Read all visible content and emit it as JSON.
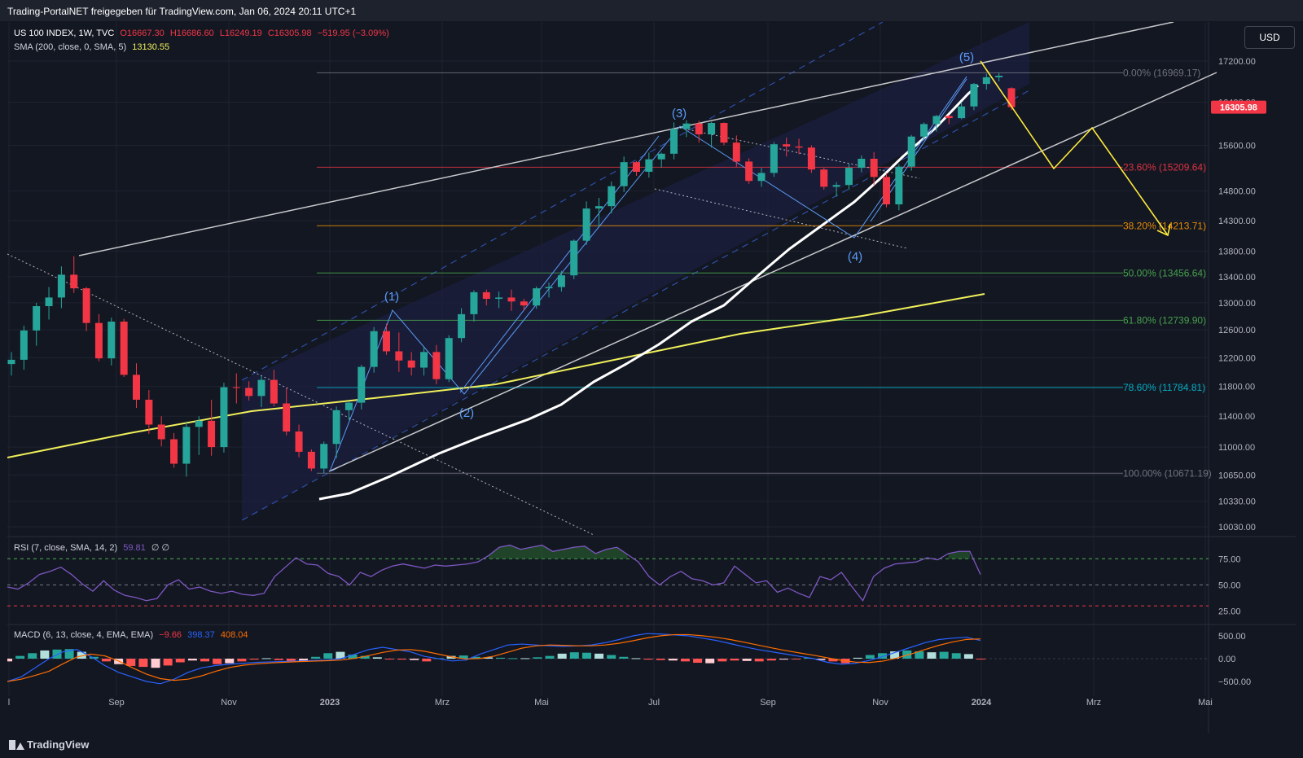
{
  "header": {
    "title": "Trading-PortalNET freigegeben für TradingView.com, Jan 06, 2024 20:11 UTC+1"
  },
  "legend": {
    "symbol": "US 100 INDEX, 1W, TVC",
    "open": "O16667.30",
    "high": "H16686.60",
    "low": "L16249.19",
    "close": "C16305.98",
    "change": "−519.95 (−3.09%)",
    "sma_label": "SMA (200, close, 0, SMA, 5)",
    "sma_value": "13130.55",
    "rsi_label": "RSI (7, close, SMA, 14, 2)",
    "rsi_value": "59.81",
    "rsi_extra": "∅  ∅",
    "macd_label": "MACD (6, 13, close, 4, EMA, EMA)",
    "macd_hist": "−9.66",
    "macd_line": "398.37",
    "macd_signal": "408.04"
  },
  "currency_button": "USD",
  "last_price_label": "16305.98",
  "brand": "TradingView",
  "colors": {
    "background": "#131722",
    "up": "#26a69a",
    "down": "#f23645",
    "sma200": "#f0f05a",
    "ma_white": "#ffffff",
    "projection": "#ffeb3b",
    "rsi": "#7e57c2",
    "macd": "#2962ff",
    "signal": "#ff6d00",
    "elliott": "#5b9cf6"
  },
  "chart_data": {
    "type": "candlestick",
    "price_axis": {
      "ticks": [
        "17200.00",
        "16400.00",
        "15600.00",
        "14800.00",
        "14300.00",
        "13800.00",
        "13400.00",
        "13000.00",
        "12600.00",
        "12200.00",
        "11800.00",
        "11400.00",
        "11000.00",
        "10650.00",
        "10330.00",
        "10030.00"
      ],
      "scale": "log"
    },
    "time_axis": {
      "ticks": [
        "l",
        "Sep",
        "Nov",
        "2023",
        "Mrz",
        "Mai",
        "Jul",
        "Sep",
        "Nov",
        "2024",
        "Mrz",
        "Mai"
      ]
    },
    "candles_weekly_ohlc": [
      [
        12110,
        12280,
        11950,
        12170
      ],
      [
        12170,
        12660,
        12030,
        12590
      ],
      [
        12590,
        13000,
        12370,
        12950
      ],
      [
        12950,
        13240,
        12750,
        13080
      ],
      [
        13080,
        13560,
        12920,
        13430
      ],
      [
        13430,
        13720,
        13150,
        13220
      ],
      [
        13220,
        13240,
        12580,
        12700
      ],
      [
        12700,
        12830,
        12150,
        12190
      ],
      [
        12190,
        12780,
        12090,
        12720
      ],
      [
        12720,
        12760,
        11930,
        11960
      ],
      [
        11960,
        12120,
        11510,
        11620
      ],
      [
        11620,
        11750,
        11170,
        11290
      ],
      [
        11290,
        11400,
        11010,
        11100
      ],
      [
        11100,
        11180,
        10740,
        10790
      ],
      [
        10790,
        11330,
        10630,
        11260
      ],
      [
        11260,
        11400,
        10900,
        11340
      ],
      [
        11340,
        11620,
        10890,
        11000
      ],
      [
        11000,
        11850,
        10930,
        11790
      ],
      [
        11790,
        11980,
        11570,
        11780
      ],
      [
        11780,
        11870,
        11610,
        11670
      ],
      [
        11670,
        11940,
        11520,
        11890
      ],
      [
        11890,
        12030,
        11530,
        11570
      ],
      [
        11570,
        11780,
        11150,
        11200
      ],
      [
        11200,
        11290,
        10870,
        10940
      ],
      [
        10940,
        10970,
        10700,
        10730
      ],
      [
        10730,
        11070,
        10670,
        11040
      ],
      [
        11040,
        11530,
        10860,
        11480
      ],
      [
        11480,
        11600,
        11350,
        11580
      ],
      [
        11580,
        12100,
        11490,
        12070
      ],
      [
        12070,
        12640,
        11990,
        12580
      ],
      [
        12580,
        12690,
        12240,
        12290
      ],
      [
        12290,
        12560,
        12000,
        12160
      ],
      [
        12160,
        12280,
        11950,
        12060
      ],
      [
        12060,
        12360,
        11950,
        12280
      ],
      [
        12280,
        12380,
        11830,
        11900
      ],
      [
        11900,
        12520,
        11860,
        12480
      ],
      [
        12480,
        12920,
        12420,
        12830
      ],
      [
        12830,
        13190,
        12720,
        13160
      ],
      [
        13160,
        13200,
        12960,
        13060
      ],
      [
        13060,
        13170,
        12920,
        13080
      ],
      [
        13080,
        13200,
        12880,
        13020
      ],
      [
        13020,
        13060,
        12880,
        12960
      ],
      [
        12960,
        13250,
        12910,
        13220
      ],
      [
        13220,
        13310,
        13080,
        13240
      ],
      [
        13240,
        13490,
        13170,
        13420
      ],
      [
        13420,
        13990,
        13360,
        13970
      ],
      [
        13970,
        14620,
        13900,
        14500
      ],
      [
        14500,
        14680,
        14200,
        14540
      ],
      [
        14540,
        14960,
        14420,
        14880
      ],
      [
        14880,
        15400,
        14780,
        15300
      ],
      [
        15300,
        15320,
        15060,
        15130
      ],
      [
        15130,
        15470,
        15030,
        15350
      ],
      [
        15350,
        15470,
        15200,
        15450
      ],
      [
        15450,
        16020,
        15350,
        15900
      ],
      [
        15900,
        16060,
        15750,
        16000
      ],
      [
        16000,
        16050,
        15650,
        15800
      ],
      [
        15800,
        16030,
        15560,
        16010
      ],
      [
        16010,
        16020,
        15600,
        15650
      ],
      [
        15650,
        15780,
        15220,
        15310
      ],
      [
        15310,
        15370,
        14920,
        14970
      ],
      [
        14970,
        15200,
        14870,
        15110
      ],
      [
        15110,
        15660,
        15040,
        15620
      ],
      [
        15620,
        15740,
        15400,
        15580
      ],
      [
        15580,
        15720,
        15440,
        15560
      ],
      [
        15560,
        15600,
        15110,
        15170
      ],
      [
        15170,
        15200,
        14820,
        14870
      ],
      [
        14870,
        14950,
        14700,
        14900
      ],
      [
        14900,
        15270,
        14820,
        15200
      ],
      [
        15200,
        15420,
        15120,
        15360
      ],
      [
        15360,
        15480,
        14900,
        15040
      ],
      [
        15040,
        15100,
        14520,
        14570
      ],
      [
        14570,
        15260,
        14470,
        15220
      ],
      [
        15220,
        15790,
        15150,
        15760
      ],
      [
        15760,
        16020,
        15700,
        15990
      ],
      [
        15990,
        16160,
        15850,
        16140
      ],
      [
        16140,
        16160,
        15990,
        16100
      ],
      [
        16100,
        16400,
        16080,
        16320
      ],
      [
        16320,
        16770,
        16250,
        16750
      ],
      [
        16750,
        16950,
        16640,
        16880
      ],
      [
        16880,
        16970,
        16800,
        16910
      ],
      [
        16667.3,
        16686.6,
        16249.19,
        16305.98
      ]
    ],
    "fibonacci": [
      {
        "level": "0.00% (16969.17)",
        "price": 16969.17
      },
      {
        "level": "23.60% (15209.64)",
        "price": 15209.64
      },
      {
        "level": "38.20% (14213.71)",
        "price": 14213.71
      },
      {
        "level": "50.00% (13456.64)",
        "price": 13456.64
      },
      {
        "level": "61.80% (12739.90)",
        "price": 12739.9
      },
      {
        "level": "78.60% (11784.81)",
        "price": 11784.81
      },
      {
        "level": "100.00% (10671.19)",
        "price": 10671.19
      }
    ],
    "elliott_waves": [
      "(1)",
      "(2)",
      "(3)",
      "(4)",
      "(5)"
    ],
    "rsi_axis": [
      "75.00",
      "50.00",
      "25.00"
    ],
    "rsi_values": [
      48,
      46,
      52,
      60,
      63,
      67,
      60,
      51,
      44,
      54,
      45,
      40,
      38,
      35,
      37,
      50,
      55,
      46,
      48,
      44,
      42,
      44,
      41,
      40,
      42,
      58,
      67,
      76,
      70,
      69,
      61,
      58,
      50,
      62,
      58,
      64,
      68,
      70,
      68,
      66,
      69,
      68,
      69,
      70,
      72,
      78,
      86,
      88,
      84,
      86,
      88,
      82,
      84,
      86,
      87,
      80,
      84,
      86,
      79,
      72,
      58,
      50,
      58,
      63,
      56,
      54,
      50,
      52,
      68,
      60,
      52,
      54,
      43,
      47,
      42,
      38,
      58,
      55,
      62,
      48,
      35,
      58,
      66,
      70,
      71,
      72,
      76,
      74,
      80,
      82,
      82,
      60
    ],
    "macd_axis": [
      "500.00",
      "0.00",
      "−500.00"
    ],
    "macd_hist": [
      -60,
      60,
      120,
      180,
      200,
      210,
      150,
      40,
      -60,
      -120,
      -160,
      -180,
      -200,
      -150,
      -80,
      -40,
      -60,
      -120,
      -100,
      -60,
      -20,
      10,
      -30,
      -80,
      -60,
      40,
      120,
      150,
      90,
      60,
      30,
      -10,
      -20,
      -30,
      -60,
      10,
      60,
      70,
      40,
      30,
      20,
      10,
      10,
      30,
      60,
      110,
      140,
      130,
      110,
      80,
      40,
      10,
      -20,
      -30,
      -40,
      -60,
      -90,
      -100,
      -60,
      -40,
      -50,
      -60,
      -40,
      -20,
      -10,
      20,
      -30,
      -60,
      -100,
      20,
      80,
      120,
      160,
      180,
      160,
      140,
      150,
      120,
      100,
      -10
    ],
    "macd_line": [
      -500,
      -400,
      -200,
      0,
      150,
      200,
      50,
      -150,
      -300,
      -400,
      -500,
      -550,
      -450,
      -300,
      -200,
      -150,
      -120,
      -100,
      -80,
      -70,
      -60,
      -50,
      -40,
      -30,
      0,
      100,
      200,
      250,
      200,
      150,
      50,
      0,
      -50,
      -30,
      100,
      200,
      300,
      320,
      300,
      280,
      270,
      280,
      300,
      350,
      420,
      500,
      550,
      540,
      520,
      500,
      450,
      400,
      330,
      260,
      200,
      150,
      100,
      50,
      0,
      -80,
      -120,
      -100,
      -40,
      50,
      150,
      250,
      350,
      420,
      450,
      470,
      398
    ]
  }
}
